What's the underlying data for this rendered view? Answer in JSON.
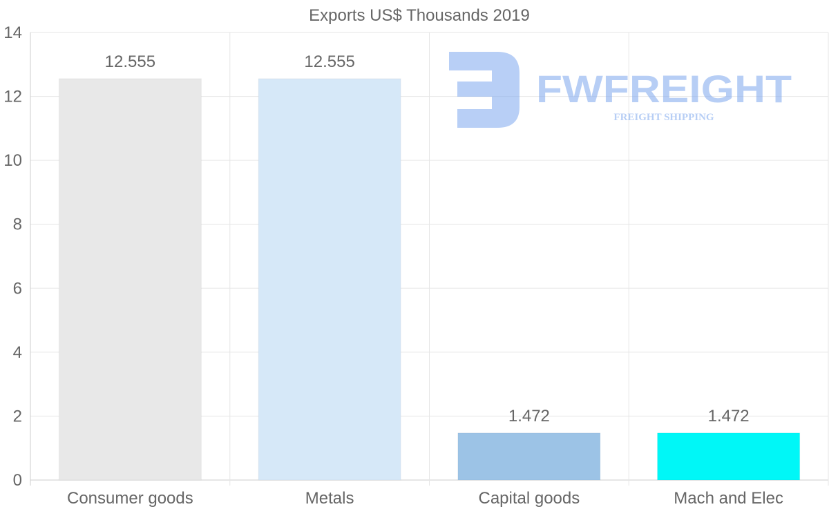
{
  "chart_data": {
    "type": "bar",
    "title": "Exports US$ Thousands 2019",
    "categories": [
      "Consumer goods",
      "Metals",
      "Capital goods",
      "Mach and Elec"
    ],
    "values": [
      12.555,
      12.555,
      1.472,
      1.472
    ],
    "data_labels": [
      "12.555",
      "12.555",
      "1.472",
      "1.472"
    ],
    "bar_colors": [
      "#e8e8e8",
      "#d6e8f8",
      "#9cc3e6",
      "#00f7f7"
    ],
    "xlabel": "",
    "ylabel": "",
    "ylim": [
      0,
      14
    ],
    "yticks": [
      0,
      2,
      4,
      6,
      8,
      10,
      12,
      14
    ],
    "grid": true,
    "legend": "none"
  },
  "watermark": {
    "brand": "FWFREIGHT",
    "tagline": "FREIGHT SHIPPING",
    "color": "#7da7ee"
  },
  "colors": {
    "text": "#666666",
    "grid": "#e6e6e6",
    "axis": "#cccccc"
  }
}
